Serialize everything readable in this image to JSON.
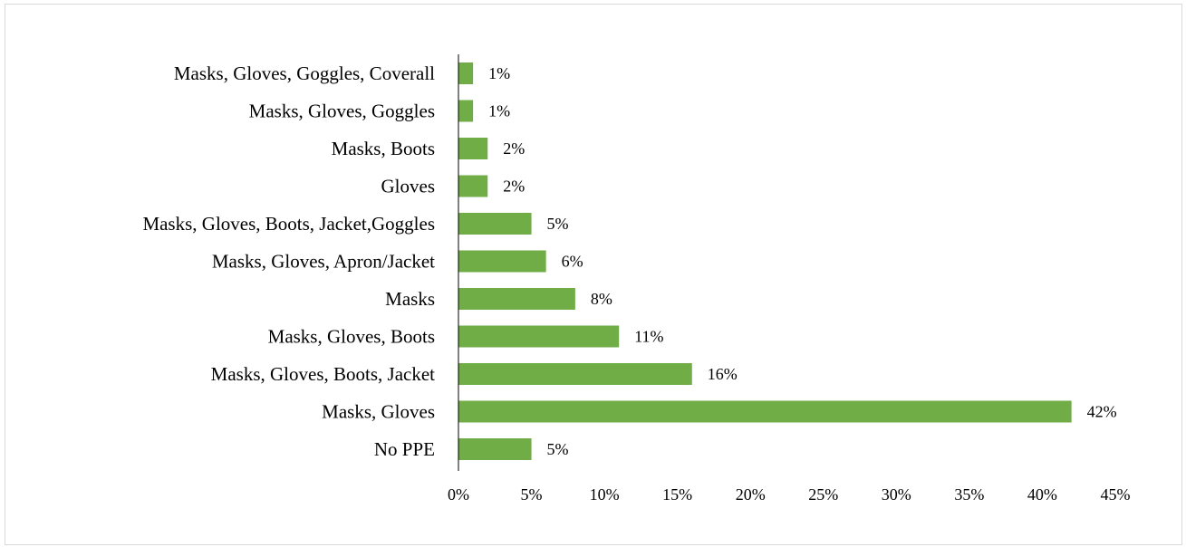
{
  "chart_data": {
    "type": "bar",
    "orientation": "horizontal",
    "categories": [
      "Masks, Gloves, Goggles, Coverall",
      "Masks, Gloves, Goggles",
      "Masks, Boots",
      "Gloves",
      "Masks, Gloves, Boots, Jacket,Goggles",
      "Masks, Gloves, Apron/Jacket",
      "Masks",
      "Masks, Gloves, Boots",
      "Masks, Gloves, Boots, Jacket",
      "Masks, Gloves",
      "No PPE"
    ],
    "values": [
      1,
      1,
      2,
      2,
      5,
      6,
      8,
      11,
      16,
      42,
      5
    ],
    "data_labels": [
      "1%",
      "1%",
      "2%",
      "2%",
      "5%",
      "6%",
      "8%",
      "11%",
      "16%",
      "42%",
      "5%"
    ],
    "x_ticks": [
      "0%",
      "5%",
      "10%",
      "15%",
      "20%",
      "25%",
      "30%",
      "35%",
      "40%",
      "45%"
    ],
    "xlim": [
      0,
      45
    ],
    "title": "",
    "xlabel": "",
    "ylabel": "",
    "grid": false,
    "legend": "none",
    "bar_color": "#70ad47"
  }
}
